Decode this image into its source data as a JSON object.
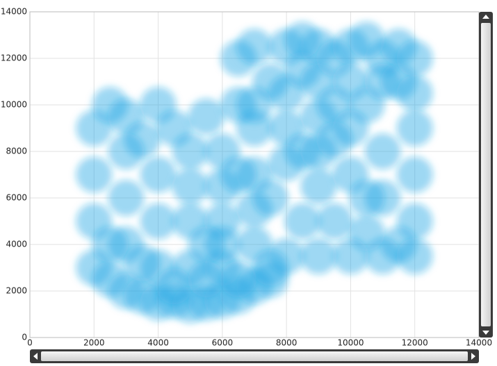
{
  "chart_data": {
    "type": "scatter",
    "color": "#1ba1e2",
    "grid": true,
    "xlim": [
      0,
      14000
    ],
    "xticks": [
      0,
      2000,
      4000,
      6000,
      8000,
      10000,
      12000,
      14000
    ],
    "ylim": [
      0,
      14000
    ],
    "yticks": [
      0,
      2000,
      4000,
      6000,
      8000,
      10000,
      12000,
      14000
    ],
    "x": [
      2000,
      2500,
      3000,
      3500,
      4000,
      4500,
      5000,
      5500,
      6000,
      6500,
      7000,
      7500,
      2000,
      2000,
      2000,
      2500,
      3000,
      3500,
      4000,
      4500,
      5000,
      5500,
      3000,
      3000,
      3000,
      4000,
      4000,
      4000,
      5000,
      5000,
      5000,
      6000,
      6000,
      6000,
      6000,
      5500,
      7000,
      7000,
      7000,
      8000,
      7500,
      4500,
      5500,
      3500,
      2500,
      6500,
      6000,
      6500,
      6500,
      7000,
      7000,
      7500,
      8000,
      8000,
      8000,
      8500,
      8500,
      9000,
      9000,
      9000,
      9500,
      9500,
      10000,
      10000,
      10500,
      11000,
      11000,
      11500,
      12000,
      12000,
      12000,
      12000,
      11500,
      11000,
      10500,
      10000,
      9000,
      9500,
      9000,
      10000,
      11000,
      11000,
      10000,
      8000,
      7500,
      8500,
      9000,
      6500,
      7000,
      11500,
      12000,
      10500,
      8500,
      9500,
      10500,
      12000
    ],
    "values": [
      3000,
      2500,
      2000,
      1800,
      1500,
      1600,
      1400,
      1500,
      1600,
      1800,
      2200,
      2500,
      5000,
      7000,
      9000,
      10000,
      9500,
      8500,
      10000,
      9000,
      8000,
      9500,
      4000,
      6000,
      8000,
      3000,
      5000,
      7000,
      3000,
      5000,
      6500,
      3000,
      5000,
      6500,
      4000,
      4000,
      4000,
      5500,
      7000,
      3500,
      3000,
      2200,
      2500,
      3200,
      4000,
      2500,
      8000,
      10000,
      12000,
      12500,
      9000,
      11000,
      12500,
      9000,
      10500,
      8000,
      11500,
      12500,
      11000,
      9500,
      10000,
      12000,
      12500,
      11000,
      10000,
      12000,
      11000,
      11000,
      10500,
      9000,
      7000,
      5000,
      4000,
      3500,
      4500,
      3500,
      3500,
      5000,
      6500,
      7000,
      8000,
      6000,
      9000,
      7500,
      6000,
      5000,
      8000,
      7000,
      10000,
      12500,
      12000,
      12800,
      12800,
      8500,
      6000,
      3500
    ]
  }
}
